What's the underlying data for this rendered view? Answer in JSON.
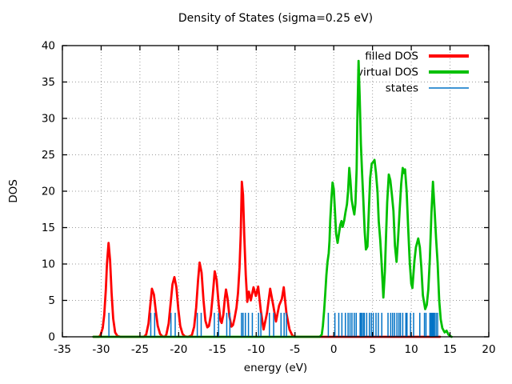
{
  "title": "Density of States (sigma=0.25 eV)",
  "chart_data": {
    "type": "line",
    "title": "Density of States (sigma=0.25 eV)",
    "xlabel": "energy (eV)",
    "ylabel": "DOS",
    "xlim": [
      -35,
      20
    ],
    "ylim": [
      0,
      40
    ],
    "xticks": [
      -35,
      -30,
      -25,
      -20,
      -15,
      -10,
      -5,
      0,
      5,
      10,
      15,
      20
    ],
    "yticks": [
      0,
      5,
      10,
      15,
      20,
      25,
      30,
      35,
      40
    ],
    "grid": true,
    "grid_color": "#9a9a9a",
    "legend_position": "top-right-inside",
    "series": [
      {
        "name": "filled DOS",
        "color": "#ff0000",
        "type": "line",
        "points": [
          [
            -31,
            0
          ],
          [
            -30.3,
            0
          ],
          [
            -30.1,
            0.2
          ],
          [
            -29.8,
            1.2
          ],
          [
            -29.6,
            3.0
          ],
          [
            -29.4,
            6.5
          ],
          [
            -29.25,
            10.0
          ],
          [
            -29.05,
            12.9
          ],
          [
            -28.85,
            10.5
          ],
          [
            -28.65,
            6.0
          ],
          [
            -28.45,
            2.5
          ],
          [
            -28.2,
            0.6
          ],
          [
            -27.9,
            0.1
          ],
          [
            -27.5,
            0
          ],
          [
            -24.5,
            0
          ],
          [
            -24.2,
            0.3
          ],
          [
            -23.9,
            1.8
          ],
          [
            -23.65,
            4.5
          ],
          [
            -23.45,
            6.6
          ],
          [
            -23.2,
            5.8
          ],
          [
            -22.95,
            3.5
          ],
          [
            -22.7,
            1.5
          ],
          [
            -22.4,
            0.4
          ],
          [
            -22.1,
            0.05
          ],
          [
            -21.8,
            0
          ],
          [
            -21.6,
            0.3
          ],
          [
            -21.3,
            1.8
          ],
          [
            -21.05,
            4.5
          ],
          [
            -20.8,
            7.2
          ],
          [
            -20.55,
            8.2
          ],
          [
            -20.3,
            6.8
          ],
          [
            -20.05,
            3.8
          ],
          [
            -19.8,
            1.5
          ],
          [
            -19.5,
            0.4
          ],
          [
            -19.2,
            0.05
          ],
          [
            -18.8,
            0
          ],
          [
            -18.3,
            0.2
          ],
          [
            -18.0,
            1.4
          ],
          [
            -17.75,
            4.0
          ],
          [
            -17.5,
            7.8
          ],
          [
            -17.3,
            10.2
          ],
          [
            -17.05,
            8.8
          ],
          [
            -16.8,
            5.0
          ],
          [
            -16.55,
            2.2
          ],
          [
            -16.3,
            1.3
          ],
          [
            -16.1,
            1.5
          ],
          [
            -15.85,
            3.0
          ],
          [
            -15.6,
            5.8
          ],
          [
            -15.35,
            9.0
          ],
          [
            -15.1,
            7.8
          ],
          [
            -14.85,
            4.5
          ],
          [
            -14.6,
            2.2
          ],
          [
            -14.45,
            1.9
          ],
          [
            -14.25,
            3.0
          ],
          [
            -14.05,
            5.2
          ],
          [
            -13.9,
            6.5
          ],
          [
            -13.7,
            5.3
          ],
          [
            -13.45,
            2.8
          ],
          [
            -13.2,
            1.4
          ],
          [
            -13.0,
            1.6
          ],
          [
            -12.8,
            2.5
          ],
          [
            -12.55,
            4.0
          ],
          [
            -12.35,
            6.0
          ],
          [
            -12.15,
            9.5
          ],
          [
            -12.0,
            14.0
          ],
          [
            -11.85,
            21.3
          ],
          [
            -11.7,
            19.5
          ],
          [
            -11.55,
            14.0
          ],
          [
            -11.35,
            8.5
          ],
          [
            -11.15,
            4.8
          ],
          [
            -10.95,
            6.2
          ],
          [
            -10.7,
            5.0
          ],
          [
            -10.35,
            6.8
          ],
          [
            -10.05,
            5.6
          ],
          [
            -9.75,
            6.9
          ],
          [
            -9.4,
            3.5
          ],
          [
            -9.05,
            1.0
          ],
          [
            -8.6,
            3.3
          ],
          [
            -8.2,
            6.6
          ],
          [
            -7.8,
            4.3
          ],
          [
            -7.45,
            2.1
          ],
          [
            -7.05,
            4.3
          ],
          [
            -6.7,
            5.2
          ],
          [
            -6.45,
            6.8
          ],
          [
            -6.1,
            3.2
          ],
          [
            -5.7,
            1.0
          ],
          [
            -5.35,
            0.2
          ],
          [
            -5.0,
            0
          ],
          [
            13.7,
            0
          ]
        ]
      },
      {
        "name": "virtual DOS",
        "color": "#00c000",
        "type": "line",
        "points": [
          [
            -31,
            0
          ],
          [
            -1.8,
            0
          ],
          [
            -1.55,
            0.3
          ],
          [
            -1.4,
            1.5
          ],
          [
            -1.25,
            3.5
          ],
          [
            -1.1,
            5.8
          ],
          [
            -0.95,
            8.5
          ],
          [
            -0.8,
            10.3
          ],
          [
            -0.65,
            11.5
          ],
          [
            -0.55,
            13.2
          ],
          [
            -0.45,
            16.0
          ],
          [
            -0.3,
            19.0
          ],
          [
            -0.15,
            21.2
          ],
          [
            0.0,
            20.3
          ],
          [
            0.15,
            17.5
          ],
          [
            0.3,
            14.2
          ],
          [
            0.5,
            12.9
          ],
          [
            0.7,
            14.4
          ],
          [
            0.85,
            15.4
          ],
          [
            1.0,
            15.9
          ],
          [
            1.15,
            15.1
          ],
          [
            1.35,
            16.0
          ],
          [
            1.5,
            17.0
          ],
          [
            1.7,
            18.2
          ],
          [
            1.85,
            20.0
          ],
          [
            2.0,
            23.2
          ],
          [
            2.15,
            21.5
          ],
          [
            2.3,
            18.9
          ],
          [
            2.5,
            17.6
          ],
          [
            2.65,
            16.8
          ],
          [
            2.8,
            18.3
          ],
          [
            2.95,
            23.0
          ],
          [
            3.05,
            30.0
          ],
          [
            3.2,
            37.9
          ],
          [
            3.35,
            33.0
          ],
          [
            3.5,
            26.5
          ],
          [
            3.65,
            22.5
          ],
          [
            3.8,
            19.2
          ],
          [
            4.0,
            14.4
          ],
          [
            4.15,
            12.0
          ],
          [
            4.35,
            12.4
          ],
          [
            4.55,
            18.0
          ],
          [
            4.7,
            21.8
          ],
          [
            4.9,
            23.8
          ],
          [
            5.1,
            24.0
          ],
          [
            5.25,
            24.3
          ],
          [
            5.45,
            22.5
          ],
          [
            5.65,
            19.9
          ],
          [
            5.8,
            15.9
          ],
          [
            6.0,
            13.3
          ],
          [
            6.15,
            10.5
          ],
          [
            6.4,
            5.4
          ],
          [
            6.6,
            9.0
          ],
          [
            6.75,
            14.0
          ],
          [
            6.9,
            18.5
          ],
          [
            7.1,
            22.3
          ],
          [
            7.3,
            21.5
          ],
          [
            7.5,
            19.5
          ],
          [
            7.7,
            17.3
          ],
          [
            7.9,
            12.5
          ],
          [
            8.1,
            10.3
          ],
          [
            8.3,
            13.5
          ],
          [
            8.5,
            17.5
          ],
          [
            8.7,
            21.0
          ],
          [
            8.9,
            23.2
          ],
          [
            9.05,
            22.5
          ],
          [
            9.2,
            23.0
          ],
          [
            9.4,
            20.0
          ],
          [
            9.6,
            15.0
          ],
          [
            9.8,
            10.2
          ],
          [
            10.0,
            7.3
          ],
          [
            10.15,
            6.7
          ],
          [
            10.4,
            10.4
          ],
          [
            10.6,
            12.3
          ],
          [
            10.9,
            13.5
          ],
          [
            11.1,
            12.3
          ],
          [
            11.3,
            9.5
          ],
          [
            11.5,
            5.7
          ],
          [
            11.8,
            3.8
          ],
          [
            12.0,
            4.4
          ],
          [
            12.2,
            6.5
          ],
          [
            12.4,
            10.7
          ],
          [
            12.6,
            17.0
          ],
          [
            12.8,
            21.3
          ],
          [
            13.0,
            17.5
          ],
          [
            13.2,
            13.5
          ],
          [
            13.4,
            10.2
          ],
          [
            13.6,
            5.0
          ],
          [
            13.8,
            2.4
          ],
          [
            14.0,
            1.2
          ],
          [
            14.3,
            0.6
          ],
          [
            14.55,
            0.85
          ],
          [
            14.8,
            0.3
          ],
          [
            15.1,
            0.05
          ],
          [
            15.2,
            0
          ]
        ]
      },
      {
        "name": "states",
        "color": "#0072c6",
        "type": "impulses",
        "height": 3.3,
        "x": [
          -29.0,
          -23.6,
          -23.1,
          -21.0,
          -20.45,
          -17.6,
          -17.1,
          -15.4,
          -14.85,
          -13.8,
          -13.4,
          -11.9,
          -11.7,
          -11.4,
          -11.0,
          -10.5,
          -9.7,
          -9.4,
          -8.3,
          -7.75,
          -6.8,
          -6.4,
          -6.1,
          -0.7,
          0.15,
          0.65,
          1.05,
          1.5,
          1.85,
          2.1,
          2.35,
          2.65,
          2.9,
          3.4,
          3.5,
          3.6,
          3.8,
          3.95,
          4.25,
          4.6,
          4.85,
          5.1,
          5.45,
          5.75,
          6.2,
          7.0,
          7.35,
          7.6,
          7.85,
          8.15,
          8.4,
          8.6,
          8.9,
          9.3,
          9.45,
          9.9,
          10.3,
          11.1,
          11.7,
          11.9,
          12.4,
          12.55,
          12.7,
          12.85,
          13.0,
          13.2,
          13.4
        ]
      }
    ],
    "legend": [
      {
        "label": "filled DOS",
        "color": "#ff0000",
        "line_width": 4
      },
      {
        "label": "virtual DOS",
        "color": "#00c000",
        "line_width": 4
      },
      {
        "label": "states",
        "color": "#0072c6",
        "line_width": 1.5
      }
    ]
  }
}
